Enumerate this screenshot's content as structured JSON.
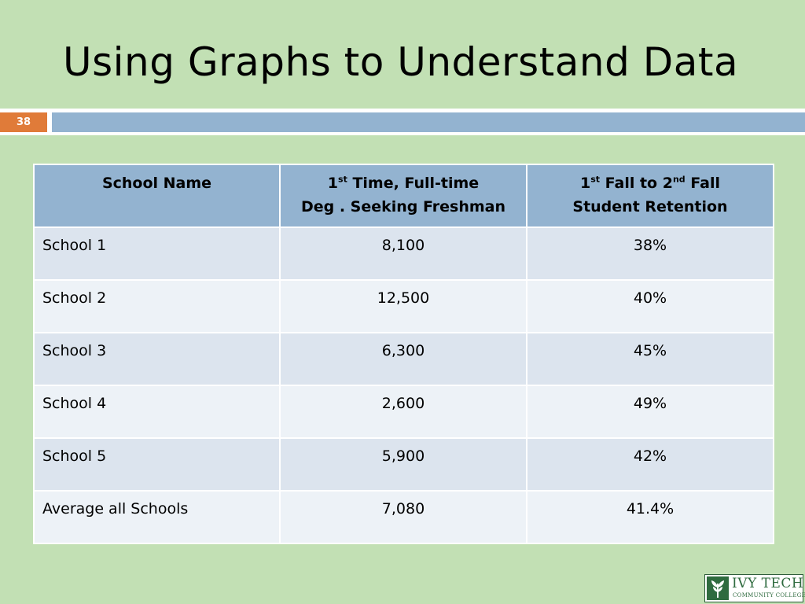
{
  "slide": {
    "title": "Using Graphs to Understand Data",
    "page_number": "38"
  },
  "table": {
    "header": {
      "col1": "School  Name",
      "col2_sup": "st",
      "col2_line1_pre": "1",
      "col2_line1_post": " Time, Full-time",
      "col2_line2": "Deg . Seeking Freshman",
      "col3_pre": "1",
      "col3_sup1": "st",
      "col3_mid": " Fall to 2",
      "col3_sup2": "nd",
      "col3_post": " Fall",
      "col3_line2": "Student Retention"
    },
    "rows": [
      {
        "name": "School 1",
        "freshman": "8,100",
        "retention": "38%"
      },
      {
        "name": "School 2",
        "freshman": "12,500",
        "retention": "40%"
      },
      {
        "name": "School 3",
        "freshman": "6,300",
        "retention": "45%"
      },
      {
        "name": "School 4",
        "freshman": "2,600",
        "retention": "49%"
      },
      {
        "name": "School 5",
        "freshman": "5,900",
        "retention": "42%"
      },
      {
        "name": "Average all Schools",
        "freshman": "7,080",
        "retention": "41.4%"
      }
    ]
  },
  "logo": {
    "name": "IVY TECH",
    "subtitle": "COMMUNITY COLLEGE",
    "icon": "ivy-leaf-icon"
  },
  "colors": {
    "background": "#c2e0b4",
    "header_blue": "#93b3d0",
    "accent_orange": "#e07b39",
    "row_odd": "#dce4ee",
    "row_even": "#edf2f7",
    "logo_green": "#2f6b3f"
  }
}
